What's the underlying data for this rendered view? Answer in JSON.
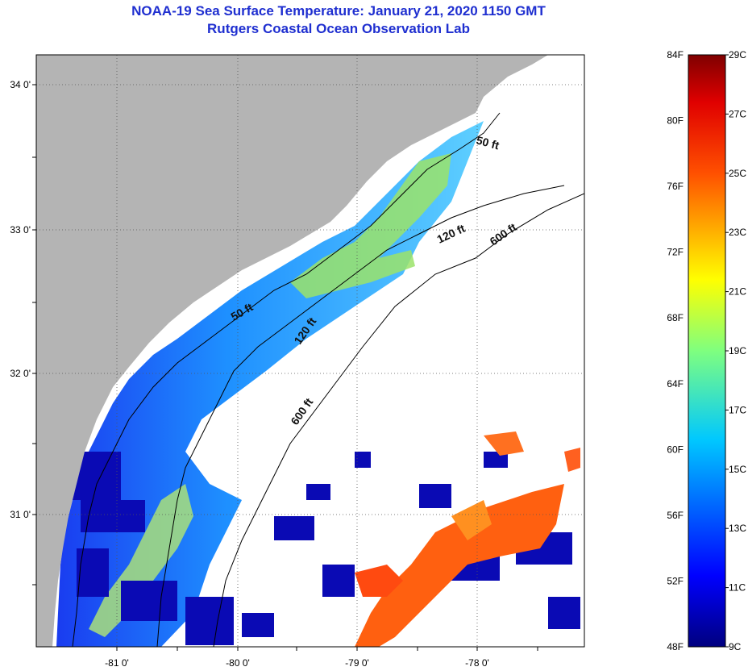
{
  "title_line1": "NOAA-19 Sea Surface Temperature:  January 21, 2020 1150 GMT",
  "title_line2": "Rutgers Coastal Ocean Observation Lab",
  "lat_labels": [
    "34 0'",
    "33 0'",
    "32 0'",
    "31 0'"
  ],
  "lon_labels": [
    "-81 0'",
    "-80 0'",
    "-79 0'",
    "-78 0'"
  ],
  "contour_labels": [
    "50 ft",
    "120 ft",
    "600 ft",
    "50 ft",
    "120 ft",
    "600 ft"
  ],
  "colorbar": {
    "fahrenheit": [
      "84F",
      "80F",
      "76F",
      "72F",
      "68F",
      "64F",
      "60F",
      "56F",
      "52F",
      "48F"
    ],
    "celsius": [
      "29C",
      "27C",
      "25C",
      "23C",
      "21C",
      "19C",
      "17C",
      "15C",
      "13C",
      "11C",
      "9C"
    ]
  },
  "colors": {
    "land": "#b4b4b4",
    "no_data": "#ffffff",
    "title": "#1f2fd0"
  }
}
